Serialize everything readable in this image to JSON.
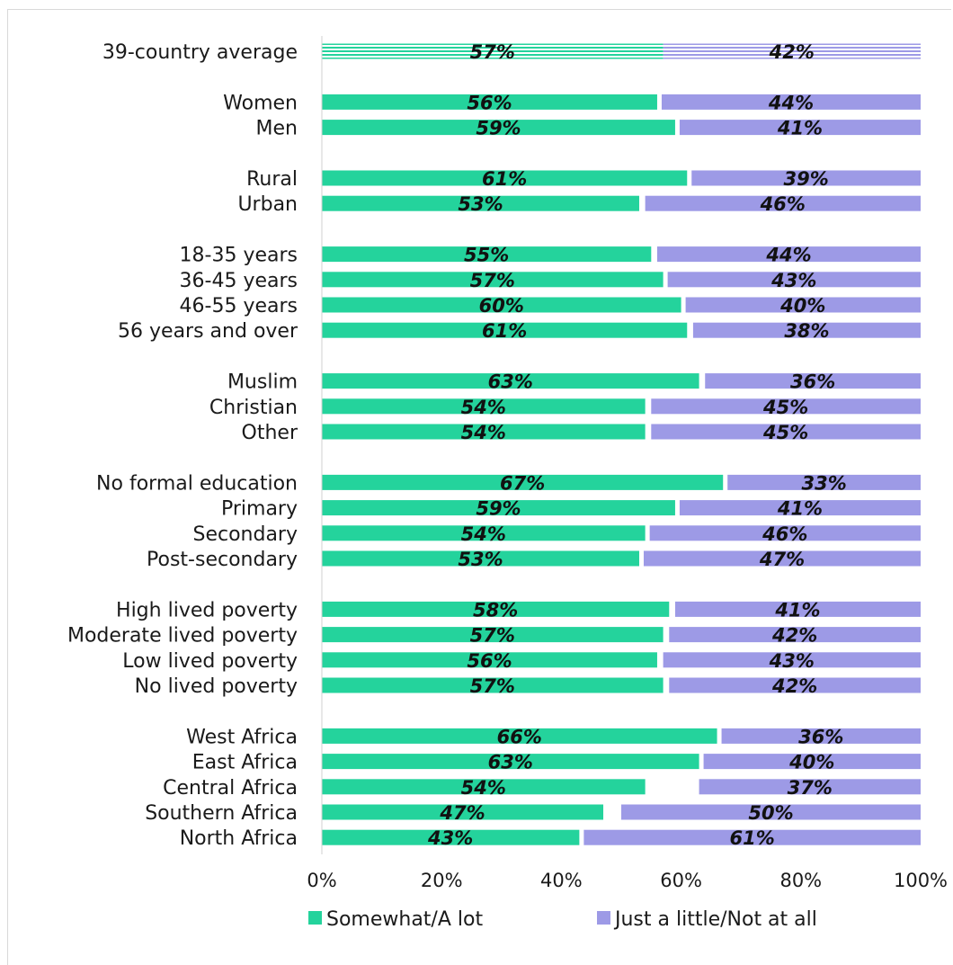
{
  "chart_data": {
    "type": "bar",
    "orientation": "horizontal",
    "stacked": true,
    "categories": [
      "39-country average",
      "Women",
      "Men",
      "Rural",
      "Urban",
      "18-35 years",
      "36-45 years",
      "46-55 years",
      "56 years and over",
      "Muslim",
      "Christian",
      "Other",
      "No formal education",
      "Primary",
      "Secondary",
      "Post-secondary",
      "High lived poverty",
      "Moderate lived poverty",
      "Low lived poverty",
      "No lived poverty",
      "West Africa",
      "East Africa",
      "Central Africa",
      "Southern Africa",
      "North Africa"
    ],
    "groups": [
      [
        0
      ],
      [
        1,
        2
      ],
      [
        3,
        4
      ],
      [
        5,
        6,
        7,
        8
      ],
      [
        9,
        10,
        11
      ],
      [
        12,
        13,
        14,
        15
      ],
      [
        16,
        17,
        18,
        19
      ],
      [
        20,
        21,
        22,
        23,
        24
      ]
    ],
    "series": [
      {
        "name": "Somewhat/A lot",
        "color": "#24d39c",
        "values": [
          57,
          56,
          59,
          61,
          53,
          55,
          57,
          60,
          61,
          63,
          54,
          54,
          67,
          59,
          54,
          53,
          58,
          57,
          56,
          57,
          66,
          63,
          54,
          47,
          43
        ],
        "labels": [
          "57%",
          "56%",
          "59%",
          "61%",
          "53%",
          "55%",
          "57%",
          "60%",
          "61%",
          "63%",
          "54%",
          "54%",
          "67%",
          "59%",
          "54%",
          "53%",
          "58%",
          "57%",
          "56%",
          "57%",
          "66%",
          "63%",
          "54%",
          "47%",
          "43%"
        ]
      },
      {
        "name": "Just a little/Not at all",
        "color": "#9d9ae6",
        "values": [
          42,
          44,
          41,
          39,
          46,
          44,
          43,
          40,
          38,
          36,
          45,
          45,
          33,
          41,
          46,
          47,
          41,
          42,
          43,
          42,
          36,
          40,
          37,
          50,
          61
        ],
        "labels": [
          "42%",
          "44%",
          "41%",
          "39%",
          "46%",
          "44%",
          "43%",
          "40%",
          "38%",
          "36%",
          "45%",
          "45%",
          "33%",
          "41%",
          "46%",
          "47%",
          "41%",
          "42%",
          "43%",
          "42%",
          "36%",
          "40%",
          "37%",
          "50%",
          "61%"
        ]
      }
    ],
    "striped_categories": [
      "39-country average"
    ],
    "xlim": [
      0,
      100
    ],
    "xticks": [
      "0%",
      "20%",
      "40%",
      "60%",
      "80%",
      "100%"
    ],
    "legend_position": "bottom",
    "grid": false
  }
}
